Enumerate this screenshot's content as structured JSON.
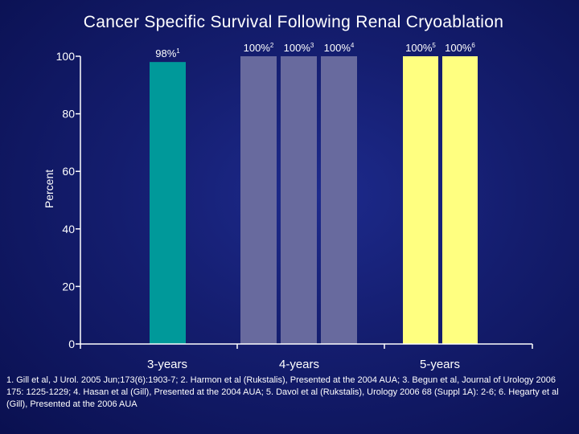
{
  "slide": {
    "title": "Cancer Specific Survival Following Renal Cryoablation",
    "footnote": "1. Gill et al, J Urol. 2005 Jun;173(6):1903-7; 2. Harmon et al (Rukstalis), Presented at the 2004 AUA; 3. Begun et al, Journal of Urology 2006 175: 1225-1229; 4. Hasan et al (Gill), Presented at the 2004 AUA; 5. Davol et al (Rukstalis), Urology 2006 68 (Suppl 1A): 2-6; 6. Hegarty et al (Gill), Presented at the 2006 AUA"
  },
  "chart_data": {
    "type": "bar",
    "title": "Cancer Specific Survival Following Renal Cryoablation",
    "ylabel": "Percent",
    "xlabel": "",
    "ylim": [
      0,
      100
    ],
    "yticks": [
      0,
      20,
      40,
      60,
      80,
      100
    ],
    "grid": false,
    "categories": [
      "3-years",
      "4-years",
      "5-years"
    ],
    "bars": [
      {
        "category": "3-years",
        "value": 98,
        "label": "98%",
        "ref": "1",
        "color": "#00999a"
      },
      {
        "category": "4-years",
        "value": 100,
        "label": "100%",
        "ref": "2",
        "color": "#686a9e"
      },
      {
        "category": "4-years",
        "value": 100,
        "label": "100%",
        "ref": "3",
        "color": "#686a9e"
      },
      {
        "category": "4-years",
        "value": 100,
        "label": "100%",
        "ref": "4",
        "color": "#686a9e"
      },
      {
        "category": "5-years",
        "value": 100,
        "label": "100%",
        "ref": "5",
        "color": "#ffff80"
      },
      {
        "category": "5-years",
        "value": 100,
        "label": "100%",
        "ref": "6",
        "color": "#ffff80"
      }
    ],
    "axis_color": "#ffffff"
  }
}
